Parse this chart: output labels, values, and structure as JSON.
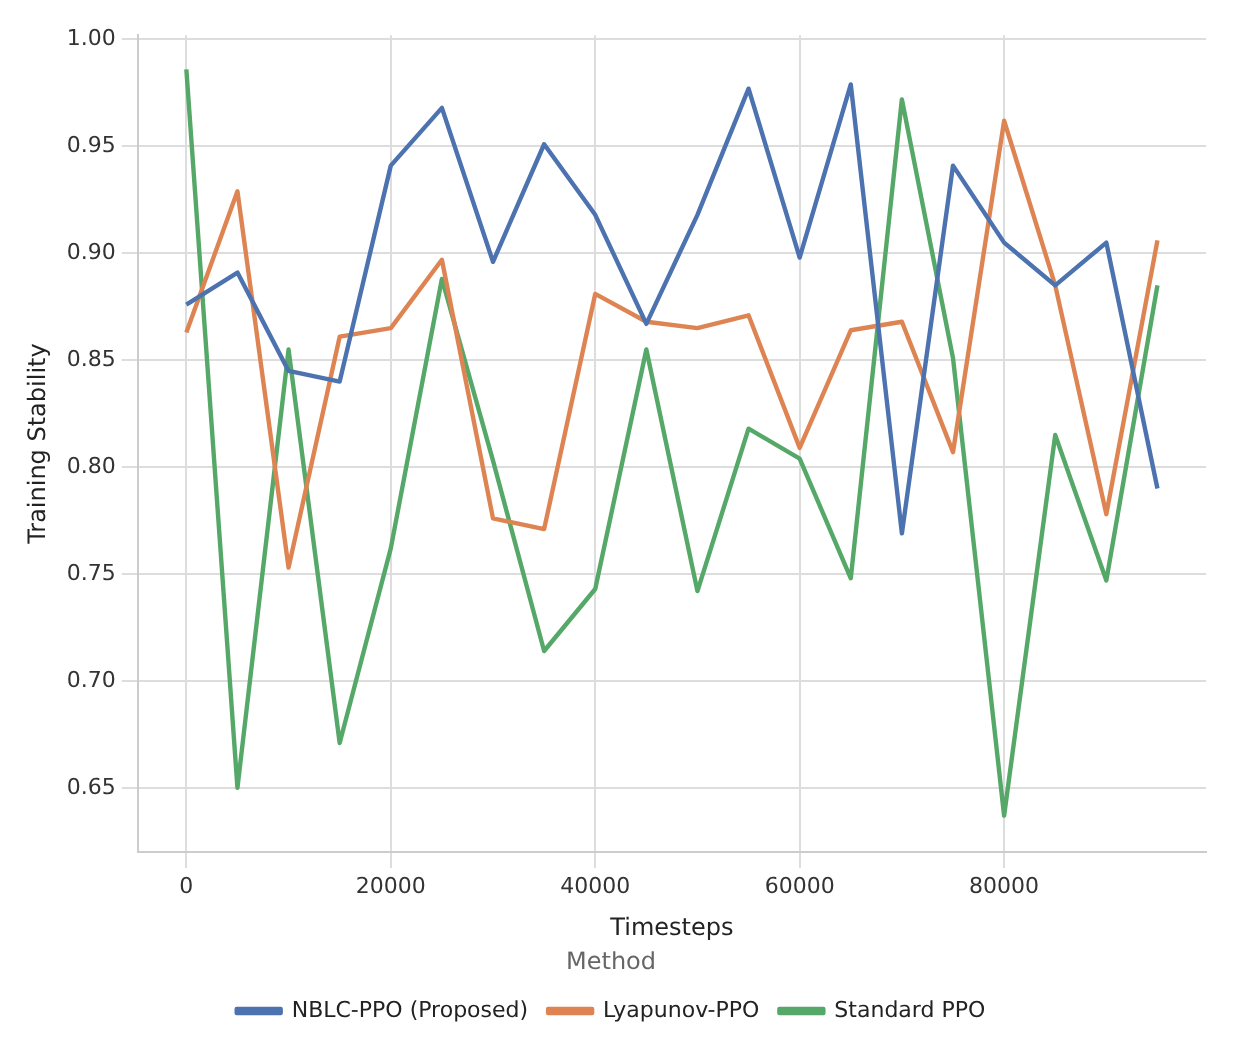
{
  "chart_data": {
    "type": "line",
    "xlabel": "Timesteps",
    "ylabel": "Training Stability",
    "legend_title": "Method",
    "x": [
      0,
      5000,
      10000,
      15000,
      20000,
      25000,
      30000,
      35000,
      40000,
      45000,
      50000,
      55000,
      60000,
      65000,
      70000,
      75000,
      80000,
      85000,
      90000,
      95000
    ],
    "series": [
      {
        "name": "NBLC-PPO (Proposed)",
        "color": "#4c72b0",
        "values": [
          0.876,
          0.891,
          0.845,
          0.84,
          0.941,
          0.968,
          0.896,
          0.951,
          0.918,
          0.867,
          0.918,
          0.977,
          0.898,
          0.979,
          0.769,
          0.941,
          0.905,
          0.885,
          0.905,
          0.79
        ]
      },
      {
        "name": "Lyapunov-PPO",
        "color": "#dd8452",
        "values": [
          0.863,
          0.929,
          0.753,
          0.861,
          0.865,
          0.897,
          0.776,
          0.771,
          0.881,
          0.868,
          0.865,
          0.871,
          0.809,
          0.864,
          0.868,
          0.807,
          0.962,
          0.885,
          0.778,
          0.906
        ]
      },
      {
        "name": "Standard PPO",
        "color": "#55a868",
        "values": [
          0.986,
          0.65,
          0.855,
          0.671,
          0.762,
          0.888,
          0.803,
          0.714,
          0.743,
          0.855,
          0.742,
          0.818,
          0.804,
          0.748,
          0.972,
          0.851,
          0.637,
          0.815,
          0.747,
          0.885
        ]
      }
    ],
    "xlim": [
      -4750,
      99750
    ],
    "xticks": [
      0,
      20000,
      40000,
      60000,
      80000
    ],
    "ylim": [
      0.62,
      1.002
    ],
    "yticks": [
      0.65,
      {
        "value": 0.7,
        "label": "0.70"
      },
      0.75,
      {
        "value": 0.8,
        "label": "0.80"
      },
      0.85,
      {
        "value": 0.9,
        "label": "0.90"
      },
      0.95,
      {
        "value": 1.0,
        "label": "1.00"
      }
    ],
    "grid": true,
    "legend": "bottom",
    "marker": "none",
    "line_style": "solid"
  }
}
